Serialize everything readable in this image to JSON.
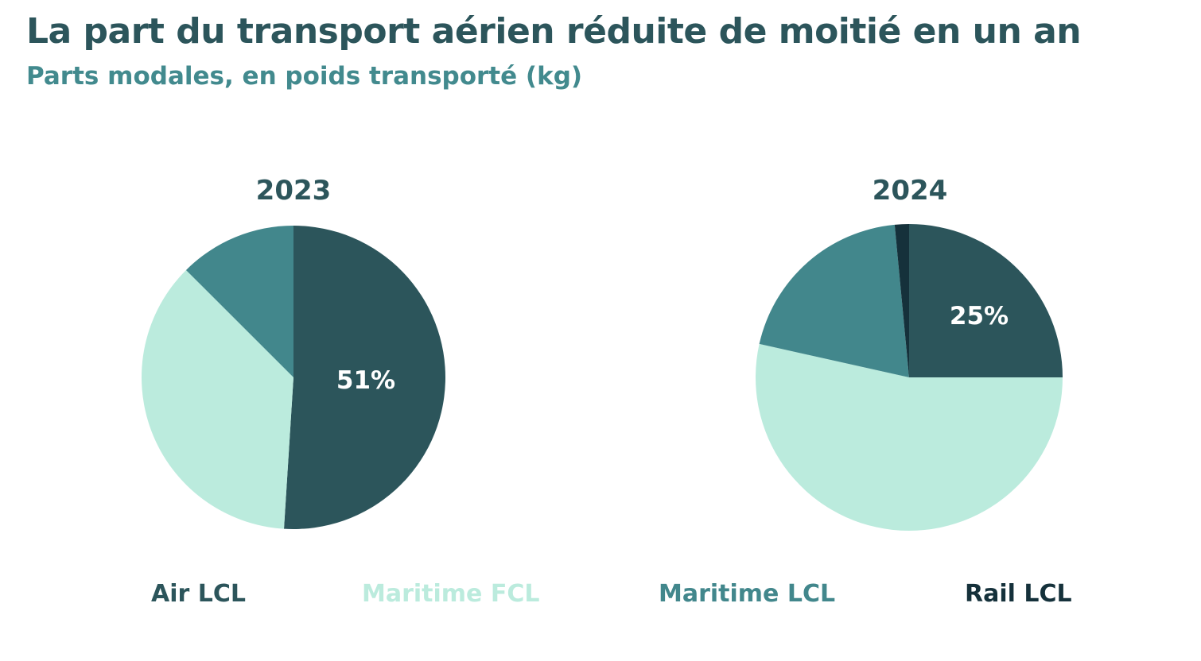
{
  "title": "La part du transport aérien réduite de moitié en un an",
  "subtitle": "Parts modales, en poids transporté (kg)",
  "colors": {
    "Air LCL": "#2c555b",
    "Maritime FCL": "#bbebdd",
    "Maritime LCL": "#42878c",
    "Rail LCL": "#15313b"
  },
  "legend": [
    "Air LCL",
    "Maritime FCL",
    "Maritime LCL",
    "Rail LCL"
  ],
  "chart_data": [
    {
      "type": "pie",
      "title": "2023",
      "categories": [
        "Air LCL",
        "Maritime FCL",
        "Maritime LCL",
        "Rail LCL"
      ],
      "values": [
        51,
        36.5,
        12.5,
        0
      ],
      "data_labels": {
        "Air LCL": "51%"
      }
    },
    {
      "type": "pie",
      "title": "2024",
      "categories": [
        "Air LCL",
        "Maritime FCL",
        "Maritime LCL",
        "Rail LCL"
      ],
      "values": [
        25,
        53.5,
        20,
        1.5
      ],
      "data_labels": {
        "Air LCL": "25%"
      }
    }
  ]
}
